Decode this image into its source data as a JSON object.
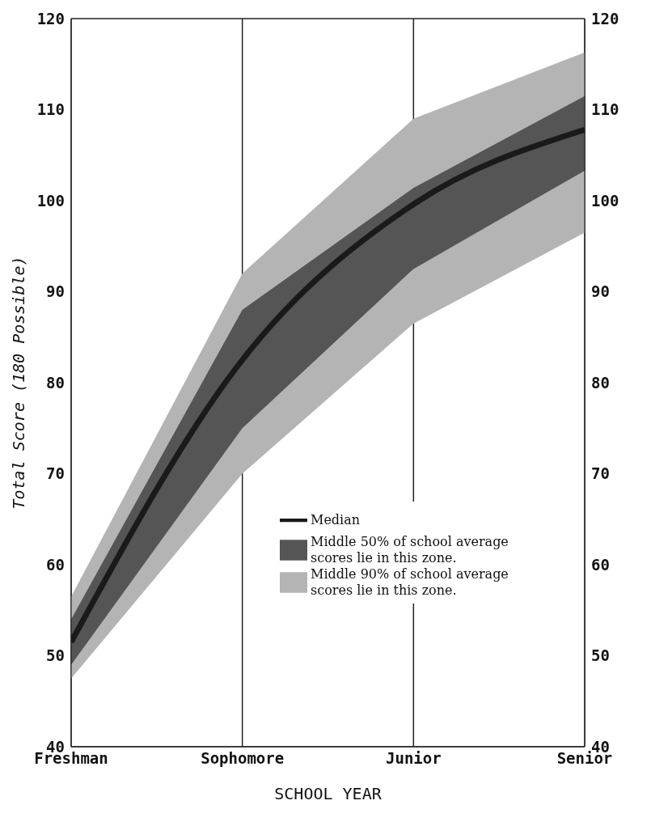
{
  "chart_data": {
    "type": "line",
    "xlabel": "SCHOOL YEAR",
    "ylabel": "Total Score (180 Possible)",
    "categories": [
      "Freshman",
      "Sophomore",
      "Junior",
      "Senior"
    ],
    "series": [
      {
        "name": "Middle 90% of school average scores lie in this zone.",
        "color": "#b4b4b4",
        "values": [
          null,
          null,
          null,
          null
        ],
        "lower": [
          47.5,
          70,
          86.5,
          96.5
        ],
        "upper": [
          56.5,
          92,
          109,
          116.3
        ]
      },
      {
        "name": "Middle 50% of school average scores lie in this zone.",
        "color": "#555555",
        "values": [
          null,
          null,
          null,
          null
        ],
        "lower": [
          49,
          75,
          92.5,
          103.3
        ],
        "upper": [
          54,
          88,
          101.4,
          111.5
        ]
      },
      {
        "name": "Median",
        "color": "#1a1a1a",
        "values": [
          51.5,
          82.5,
          99.6,
          107.8
        ]
      }
    ],
    "ylim": [
      40,
      120
    ],
    "yticks": [
      40,
      50,
      60,
      70,
      80,
      90,
      100,
      110,
      120
    ],
    "y2lim": [
      40,
      120
    ],
    "y2ticks": [
      40,
      50,
      60,
      70,
      80,
      90,
      100,
      110,
      120
    ],
    "grid": true,
    "legend": "bottom right",
    "marker": "none"
  }
}
